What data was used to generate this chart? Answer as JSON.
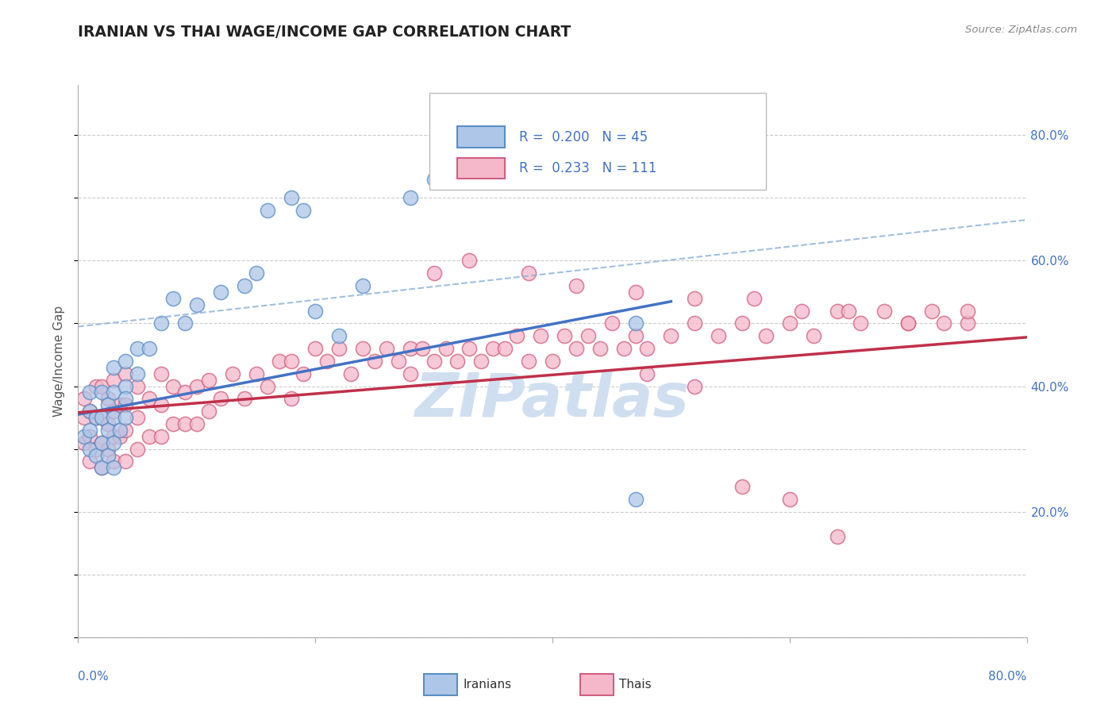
{
  "title": "IRANIAN VS THAI WAGE/INCOME GAP CORRELATION CHART",
  "source": "Source: ZipAtlas.com",
  "ylabel": "Wage/Income Gap",
  "xlim": [
    0.0,
    0.8
  ],
  "ylim": [
    0.0,
    0.88
  ],
  "ytick_labels": [
    "20.0%",
    "40.0%",
    "60.0%",
    "80.0%"
  ],
  "ytick_values": [
    0.2,
    0.4,
    0.6,
    0.8
  ],
  "xtick_left_label": "0.0%",
  "xtick_right_label": "80.0%",
  "xtick_values": [
    0.0,
    0.2,
    0.4,
    0.6,
    0.8
  ],
  "iranian_R": 0.2,
  "iranian_N": 45,
  "thai_R": 0.233,
  "thai_N": 111,
  "iranian_color": "#aec6e8",
  "iranian_edge_color": "#5b8ec4",
  "thai_color": "#f5b8cb",
  "thai_edge_color": "#d06080",
  "iranian_line_color": "#4472c4",
  "thai_line_color": "#c0304a",
  "dash_line_color": "#8ab0d8",
  "background_color": "#ffffff",
  "grid_color": "#cccccc",
  "title_color": "#222222",
  "source_color": "#888888",
  "tick_color": "#4472c4",
  "ylabel_color": "#555555",
  "watermark_color": "#d0dff0",
  "iranians_x": [
    0.005,
    0.01,
    0.01,
    0.01,
    0.01,
    0.015,
    0.015,
    0.02,
    0.02,
    0.02,
    0.02,
    0.025,
    0.025,
    0.025,
    0.03,
    0.03,
    0.03,
    0.03,
    0.03,
    0.035,
    0.04,
    0.04,
    0.04,
    0.04,
    0.05,
    0.05,
    0.06,
    0.07,
    0.08,
    0.09,
    0.1,
    0.12,
    0.14,
    0.15,
    0.16,
    0.18,
    0.19,
    0.2,
    0.22,
    0.24,
    0.28,
    0.3,
    0.34,
    0.47,
    0.47
  ],
  "iranians_y": [
    0.32,
    0.3,
    0.33,
    0.36,
    0.39,
    0.29,
    0.35,
    0.27,
    0.31,
    0.35,
    0.39,
    0.29,
    0.33,
    0.37,
    0.27,
    0.31,
    0.35,
    0.39,
    0.43,
    0.33,
    0.35,
    0.4,
    0.44,
    0.38,
    0.42,
    0.46,
    0.46,
    0.5,
    0.54,
    0.5,
    0.53,
    0.55,
    0.56,
    0.58,
    0.68,
    0.7,
    0.68,
    0.52,
    0.48,
    0.56,
    0.7,
    0.73,
    0.73,
    0.5,
    0.22
  ],
  "thais_x": [
    0.005,
    0.005,
    0.005,
    0.01,
    0.01,
    0.01,
    0.015,
    0.015,
    0.015,
    0.02,
    0.02,
    0.02,
    0.02,
    0.025,
    0.025,
    0.025,
    0.03,
    0.03,
    0.03,
    0.03,
    0.035,
    0.035,
    0.04,
    0.04,
    0.04,
    0.04,
    0.05,
    0.05,
    0.05,
    0.06,
    0.06,
    0.07,
    0.07,
    0.07,
    0.08,
    0.08,
    0.09,
    0.09,
    0.1,
    0.1,
    0.11,
    0.11,
    0.12,
    0.13,
    0.14,
    0.15,
    0.16,
    0.17,
    0.18,
    0.18,
    0.19,
    0.2,
    0.21,
    0.22,
    0.23,
    0.24,
    0.25,
    0.26,
    0.27,
    0.28,
    0.28,
    0.29,
    0.3,
    0.31,
    0.32,
    0.33,
    0.34,
    0.35,
    0.36,
    0.37,
    0.38,
    0.39,
    0.4,
    0.41,
    0.42,
    0.43,
    0.44,
    0.45,
    0.46,
    0.47,
    0.48,
    0.5,
    0.52,
    0.54,
    0.56,
    0.58,
    0.6,
    0.62,
    0.64,
    0.66,
    0.68,
    0.7,
    0.72,
    0.75,
    0.3,
    0.33,
    0.38,
    0.42,
    0.47,
    0.52,
    0.57,
    0.61,
    0.65,
    0.7,
    0.73,
    0.75,
    0.48,
    0.52,
    0.56,
    0.6,
    0.64
  ],
  "thais_y": [
    0.31,
    0.35,
    0.38,
    0.28,
    0.32,
    0.36,
    0.3,
    0.35,
    0.4,
    0.27,
    0.31,
    0.35,
    0.4,
    0.3,
    0.34,
    0.38,
    0.28,
    0.32,
    0.36,
    0.41,
    0.32,
    0.37,
    0.28,
    0.33,
    0.37,
    0.42,
    0.3,
    0.35,
    0.4,
    0.32,
    0.38,
    0.32,
    0.37,
    0.42,
    0.34,
    0.4,
    0.34,
    0.39,
    0.34,
    0.4,
    0.36,
    0.41,
    0.38,
    0.42,
    0.38,
    0.42,
    0.4,
    0.44,
    0.38,
    0.44,
    0.42,
    0.46,
    0.44,
    0.46,
    0.42,
    0.46,
    0.44,
    0.46,
    0.44,
    0.46,
    0.42,
    0.46,
    0.44,
    0.46,
    0.44,
    0.46,
    0.44,
    0.46,
    0.46,
    0.48,
    0.44,
    0.48,
    0.44,
    0.48,
    0.46,
    0.48,
    0.46,
    0.5,
    0.46,
    0.48,
    0.46,
    0.48,
    0.5,
    0.48,
    0.5,
    0.48,
    0.5,
    0.48,
    0.52,
    0.5,
    0.52,
    0.5,
    0.52,
    0.5,
    0.58,
    0.6,
    0.58,
    0.56,
    0.55,
    0.54,
    0.54,
    0.52,
    0.52,
    0.5,
    0.5,
    0.52,
    0.42,
    0.4,
    0.24,
    0.22,
    0.16
  ],
  "iranian_line_x": [
    0.0,
    0.5
  ],
  "iranian_line_y": [
    0.355,
    0.535
  ],
  "thai_line_x": [
    0.0,
    0.8
  ],
  "thai_line_y": [
    0.358,
    0.478
  ],
  "dash_line_x": [
    0.0,
    0.8
  ],
  "dash_line_y": [
    0.495,
    0.665
  ]
}
